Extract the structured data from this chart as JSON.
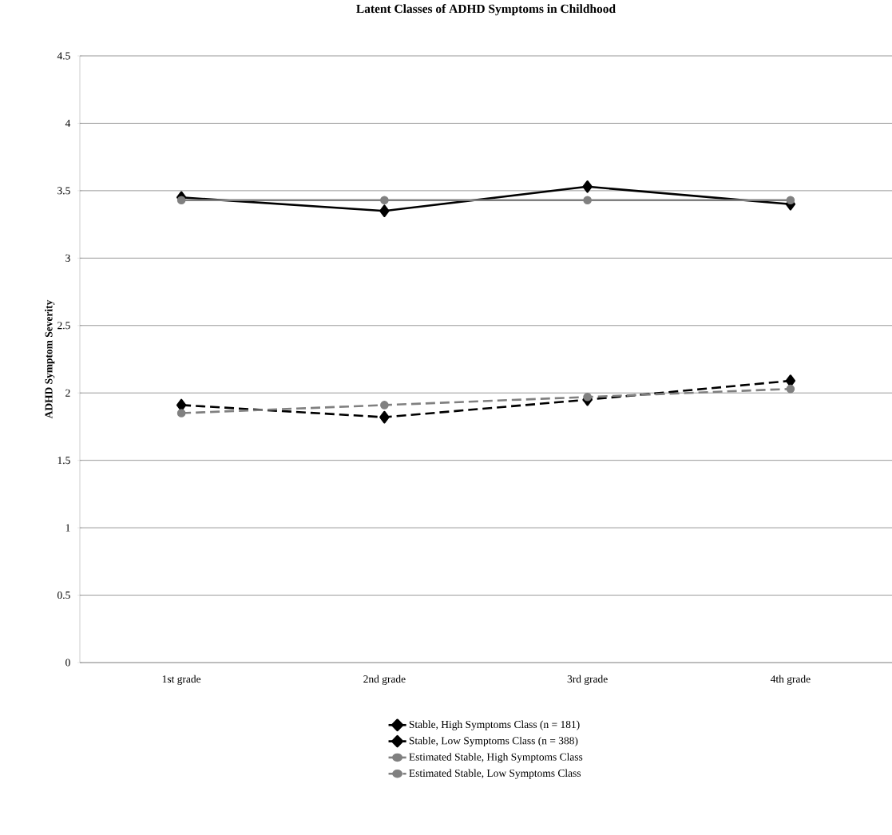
{
  "chart_data": {
    "type": "line",
    "title": "Latent Classes of ADHD Symptoms in Childhood",
    "ylabel": "ADHD Symptom Severity",
    "categories": [
      "1st grade",
      "2nd grade",
      "3rd grade",
      "4th grade"
    ],
    "series": [
      {
        "name": "Stable, High Symptoms Class (n = 181)",
        "color": "#000000",
        "values": [
          3.45,
          3.35,
          3.53,
          3.4
        ],
        "marker": "diamond",
        "line_style": "solid"
      },
      {
        "name": "Stable, Low Symptoms Class (n = 388)",
        "color": "#000000",
        "values": [
          1.91,
          1.82,
          1.95,
          2.09
        ],
        "marker": "diamond",
        "line_style": "dashed"
      },
      {
        "name": "Estimated Stable, High Symptoms Class",
        "color": "#808080",
        "values": [
          3.43,
          3.43,
          3.43,
          3.43
        ],
        "marker": "circle",
        "line_style": "solid"
      },
      {
        "name": "Estimated Stable, Low Symptoms Class",
        "color": "#808080",
        "values": [
          1.85,
          1.91,
          1.97,
          2.03
        ],
        "marker": "circle",
        "line_style": "dashed"
      }
    ],
    "ylim": [
      0,
      4.5
    ],
    "yticks": [
      0,
      0.5,
      1,
      1.5,
      2,
      2.5,
      3,
      3.5,
      4,
      4.5
    ],
    "grid": "y",
    "legend": "bottom"
  }
}
